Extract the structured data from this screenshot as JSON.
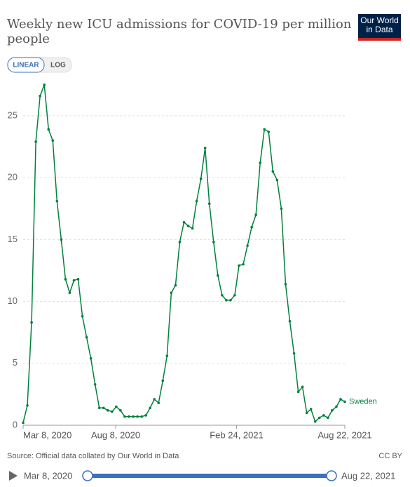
{
  "chart_data": {
    "type": "line",
    "title": "Weekly new ICU admissions for COVID-19 per million people",
    "x": [
      "2020-03-08",
      "2020-03-15",
      "2020-03-22",
      "2020-03-29",
      "2020-04-05",
      "2020-04-12",
      "2020-04-19",
      "2020-04-26",
      "2020-05-03",
      "2020-05-10",
      "2020-05-17",
      "2020-05-24",
      "2020-05-31",
      "2020-06-07",
      "2020-06-14",
      "2020-06-21",
      "2020-06-28",
      "2020-07-05",
      "2020-07-12",
      "2020-07-19",
      "2020-07-26",
      "2020-08-02",
      "2020-08-09",
      "2020-08-16",
      "2020-08-23",
      "2020-08-30",
      "2020-09-06",
      "2020-09-13",
      "2020-09-20",
      "2020-09-27",
      "2020-10-04",
      "2020-10-11",
      "2020-10-18",
      "2020-10-25",
      "2020-11-01",
      "2020-11-08",
      "2020-11-15",
      "2020-11-22",
      "2020-11-29",
      "2020-12-06",
      "2020-12-13",
      "2020-12-20",
      "2020-12-27",
      "2021-01-03",
      "2021-01-10",
      "2021-01-17",
      "2021-01-24",
      "2021-01-31",
      "2021-02-07",
      "2021-02-14",
      "2021-02-21",
      "2021-02-28",
      "2021-03-07",
      "2021-03-14",
      "2021-03-21",
      "2021-03-28",
      "2021-04-04",
      "2021-04-11",
      "2021-04-18",
      "2021-04-25",
      "2021-05-02",
      "2021-05-09",
      "2021-05-16",
      "2021-05-23",
      "2021-05-30",
      "2021-06-06",
      "2021-06-13",
      "2021-06-20",
      "2021-06-27",
      "2021-07-04",
      "2021-07-11",
      "2021-07-18",
      "2021-07-25",
      "2021-08-01",
      "2021-08-08",
      "2021-08-15",
      "2021-08-22"
    ],
    "series": [
      {
        "name": "Sweden",
        "color": "#00813b",
        "values": [
          0.2,
          1.6,
          8.3,
          22.9,
          26.6,
          27.5,
          23.9,
          23.0,
          18.1,
          15.0,
          11.8,
          10.7,
          11.7,
          11.8,
          8.8,
          7.1,
          5.4,
          3.3,
          1.4,
          1.4,
          1.2,
          1.1,
          1.5,
          1.2,
          0.7,
          0.7,
          0.7,
          0.7,
          0.7,
          0.8,
          1.4,
          2.1,
          1.8,
          3.6,
          5.6,
          10.7,
          11.3,
          14.8,
          16.4,
          16.1,
          15.9,
          18.1,
          19.9,
          22.4,
          17.9,
          14.8,
          12.1,
          10.5,
          10.1,
          10.1,
          10.5,
          12.9,
          13.0,
          14.5,
          16.0,
          17.0,
          21.2,
          23.9,
          23.7,
          20.5,
          19.8,
          17.5,
          11.4,
          8.4,
          5.8,
          2.7,
          3.1,
          1.0,
          1.3,
          0.3,
          0.6,
          0.8,
          0.6,
          1.2,
          1.5,
          2.1,
          1.9
        ]
      }
    ],
    "xlim": [
      "2020-03-08",
      "2021-08-22"
    ],
    "xticks": [
      {
        "value": "2020-03-08",
        "label": "Mar 8, 2020"
      },
      {
        "value": "2020-08-08",
        "label": "Aug 8, 2020"
      },
      {
        "value": "2021-02-24",
        "label": "Feb 24, 2021"
      },
      {
        "value": "2021-08-22",
        "label": "Aug 22, 2021"
      }
    ],
    "ylim": [
      0,
      28
    ],
    "yticks": [
      0,
      5,
      10,
      15,
      20,
      25
    ],
    "grid": true,
    "log_scale": false
  },
  "logo": "Our World in Data",
  "scale_buttons": [
    "LINEAR",
    "LOG"
  ],
  "source": "Source: Official data collated by Our World in Data",
  "license": "CC BY",
  "timeline": {
    "start": "Mar 8, 2020",
    "end": "Aug 22, 2021"
  }
}
